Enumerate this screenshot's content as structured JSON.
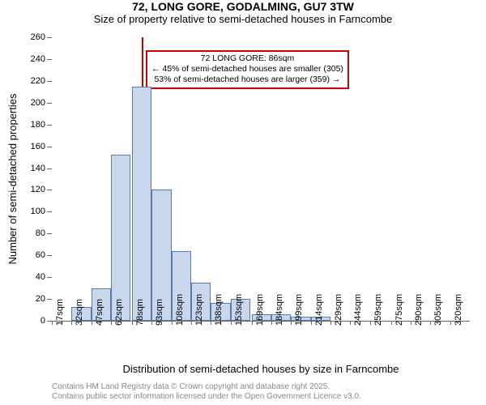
{
  "title": "72, LONG GORE, GODALMING, GU7 3TW",
  "subtitle": "Size of property relative to semi-detached houses in Farncombe",
  "chart": {
    "type": "histogram",
    "ylabel": "Number of semi-detached properties",
    "xlabel": "Distribution of semi-detached houses by size in Farncombe",
    "ylim": [
      0,
      260
    ],
    "ytick_step": 20,
    "yticks": [
      0,
      20,
      40,
      60,
      80,
      100,
      120,
      140,
      160,
      180,
      200,
      220,
      240,
      260
    ],
    "x_tick_labels": [
      "17sqm",
      "32sqm",
      "47sqm",
      "62sqm",
      "78sqm",
      "93sqm",
      "108sqm",
      "123sqm",
      "138sqm",
      "153sqm",
      "169sqm",
      "184sqm",
      "199sqm",
      "214sqm",
      "229sqm",
      "244sqm",
      "259sqm",
      "275sqm",
      "290sqm",
      "305sqm",
      "320sqm"
    ],
    "bar_x_start": [
      17,
      32,
      47,
      62,
      78,
      93,
      108,
      123,
      138,
      153,
      169,
      184,
      199,
      214,
      229,
      244,
      259,
      275,
      290,
      305
    ],
    "bar_width_units": 15,
    "x_range": [
      17,
      335
    ],
    "values": [
      0,
      13,
      30,
      152,
      215,
      120,
      64,
      35,
      16,
      20,
      6,
      6,
      4,
      4,
      0,
      0,
      0,
      0,
      0,
      0
    ],
    "bar_fill": "#c9d7ed",
    "bar_stroke": "#5b7aa8",
    "background_color": "#ffffff",
    "marker": {
      "x": 86,
      "color": "#cc0000",
      "label_line1": "72 LONG GORE: 86sqm",
      "label_line2": "← 45% of semi-detached houses are smaller (305)",
      "label_line3": "53% of semi-detached houses are larger (359) →"
    },
    "title_fontsize": 14,
    "label_fontsize": 13,
    "tick_fontsize": 11
  },
  "footer": {
    "line1": "Contains HM Land Registry data © Crown copyright and database right 2025.",
    "line2": "Contains public sector information licensed under the Open Government Licence v3.0."
  }
}
